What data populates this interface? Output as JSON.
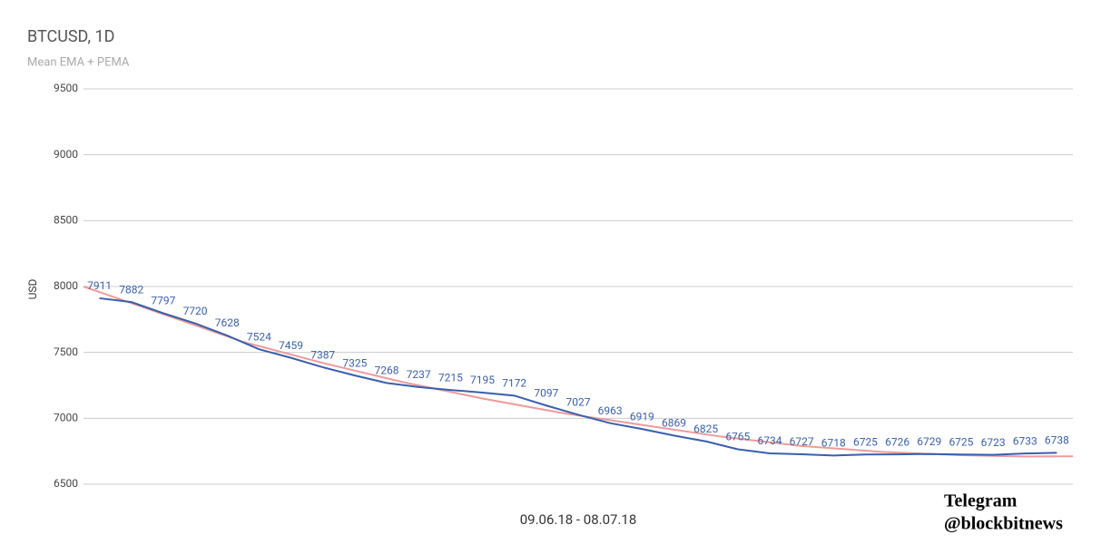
{
  "chart_data": {
    "type": "line",
    "title": "BTCUSD, 1D",
    "subtitle": "Mean EMA + PEMA",
    "x_label": "09.06.18 - 08.07.18",
    "y_label": "USD",
    "xlim": [
      -0.5,
      30.5
    ],
    "ylim": [
      6500,
      9500
    ],
    "yticks": [
      6500,
      7000,
      7500,
      8000,
      8500,
      9000,
      9500
    ],
    "grid": true,
    "series": [
      {
        "name": "Mean EMA",
        "color": "#3a5fad",
        "x": [
          0,
          1,
          2,
          3,
          4,
          5,
          6,
          7,
          8,
          9,
          10,
          11,
          12,
          13,
          14,
          15,
          16,
          17,
          18,
          19,
          20,
          21,
          22,
          23,
          24,
          25,
          26,
          27,
          28,
          29,
          30
        ],
        "values": [
          7911,
          7882,
          7797,
          7720,
          7628,
          7524,
          7459,
          7387,
          7325,
          7268,
          7237,
          7215,
          7195,
          7172,
          7097,
          7027,
          6963,
          6919,
          6869,
          6825,
          6765,
          6734,
          6727,
          6718,
          6725,
          6726,
          6729,
          6725,
          6723,
          6733,
          6738
        ],
        "data_labels": true
      },
      {
        "name": "PEMA",
        "color": "#ef9a9a",
        "x": [
          -0.5,
          2,
          4.5,
          7,
          9.5,
          12,
          14.5,
          17,
          19.5,
          22,
          24.5,
          27,
          29,
          30.5
        ],
        "values": [
          8000,
          7790,
          7580,
          7420,
          7275,
          7150,
          7040,
          6950,
          6860,
          6790,
          6745,
          6720,
          6710,
          6712
        ],
        "data_labels": false
      }
    ]
  },
  "watermark": {
    "line1": "Telegram",
    "line2": "@blockbitnews"
  }
}
